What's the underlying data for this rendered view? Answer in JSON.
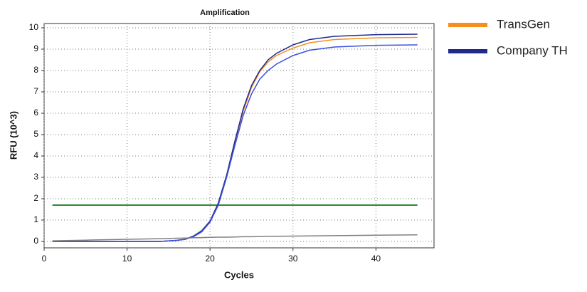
{
  "chart_data": {
    "type": "line",
    "title": "Amplification",
    "x_label": "Cycles",
    "y_label": "RFU (10^3)",
    "x": [
      1,
      5,
      10,
      14,
      16,
      17,
      18,
      19,
      20,
      21,
      22,
      23,
      24,
      25,
      26,
      27,
      28,
      30,
      32,
      35,
      40,
      45
    ],
    "series": [
      {
        "name": "TransGen",
        "color": "#f5901e",
        "values": [
          0,
          0,
          0,
          0,
          0.05,
          0.1,
          0.25,
          0.5,
          0.95,
          1.8,
          3.1,
          4.7,
          6.1,
          7.2,
          7.95,
          8.4,
          8.7,
          9.05,
          9.3,
          9.45,
          9.53,
          9.55
        ]
      },
      {
        "name": "Company TH",
        "color": "#1f2a8c",
        "values": [
          0,
          0,
          0,
          0,
          0.05,
          0.1,
          0.25,
          0.5,
          0.95,
          1.8,
          3.1,
          4.7,
          6.2,
          7.3,
          8.0,
          8.5,
          8.8,
          9.2,
          9.45,
          9.6,
          9.68,
          9.7
        ]
      },
      {
        "color": "#3a4fe0",
        "values": [
          0,
          0,
          0,
          0,
          0.05,
          0.1,
          0.22,
          0.45,
          0.9,
          1.7,
          3.0,
          4.5,
          5.9,
          6.9,
          7.6,
          8.0,
          8.3,
          8.7,
          8.95,
          9.1,
          9.18,
          9.2
        ]
      },
      {
        "color": "#808080",
        "values": [
          0.03,
          0.06,
          0.1,
          0.13,
          0.15,
          0.16,
          0.17,
          0.18,
          0.19,
          0.2,
          0.2,
          0.21,
          0.22,
          0.22,
          0.23,
          0.24,
          0.24,
          0.25,
          0.26,
          0.27,
          0.29,
          0.31
        ]
      }
    ],
    "threshold": {
      "value": 1.7,
      "color": "#2e8b2e"
    },
    "xlim": [
      0,
      47
    ],
    "ylim": [
      -0.3,
      10.2
    ],
    "xticks": [
      0,
      10,
      20,
      30,
      40
    ],
    "yticks": [
      0,
      1,
      2,
      3,
      4,
      5,
      6,
      7,
      8,
      9,
      10
    ],
    "grid": true
  }
}
